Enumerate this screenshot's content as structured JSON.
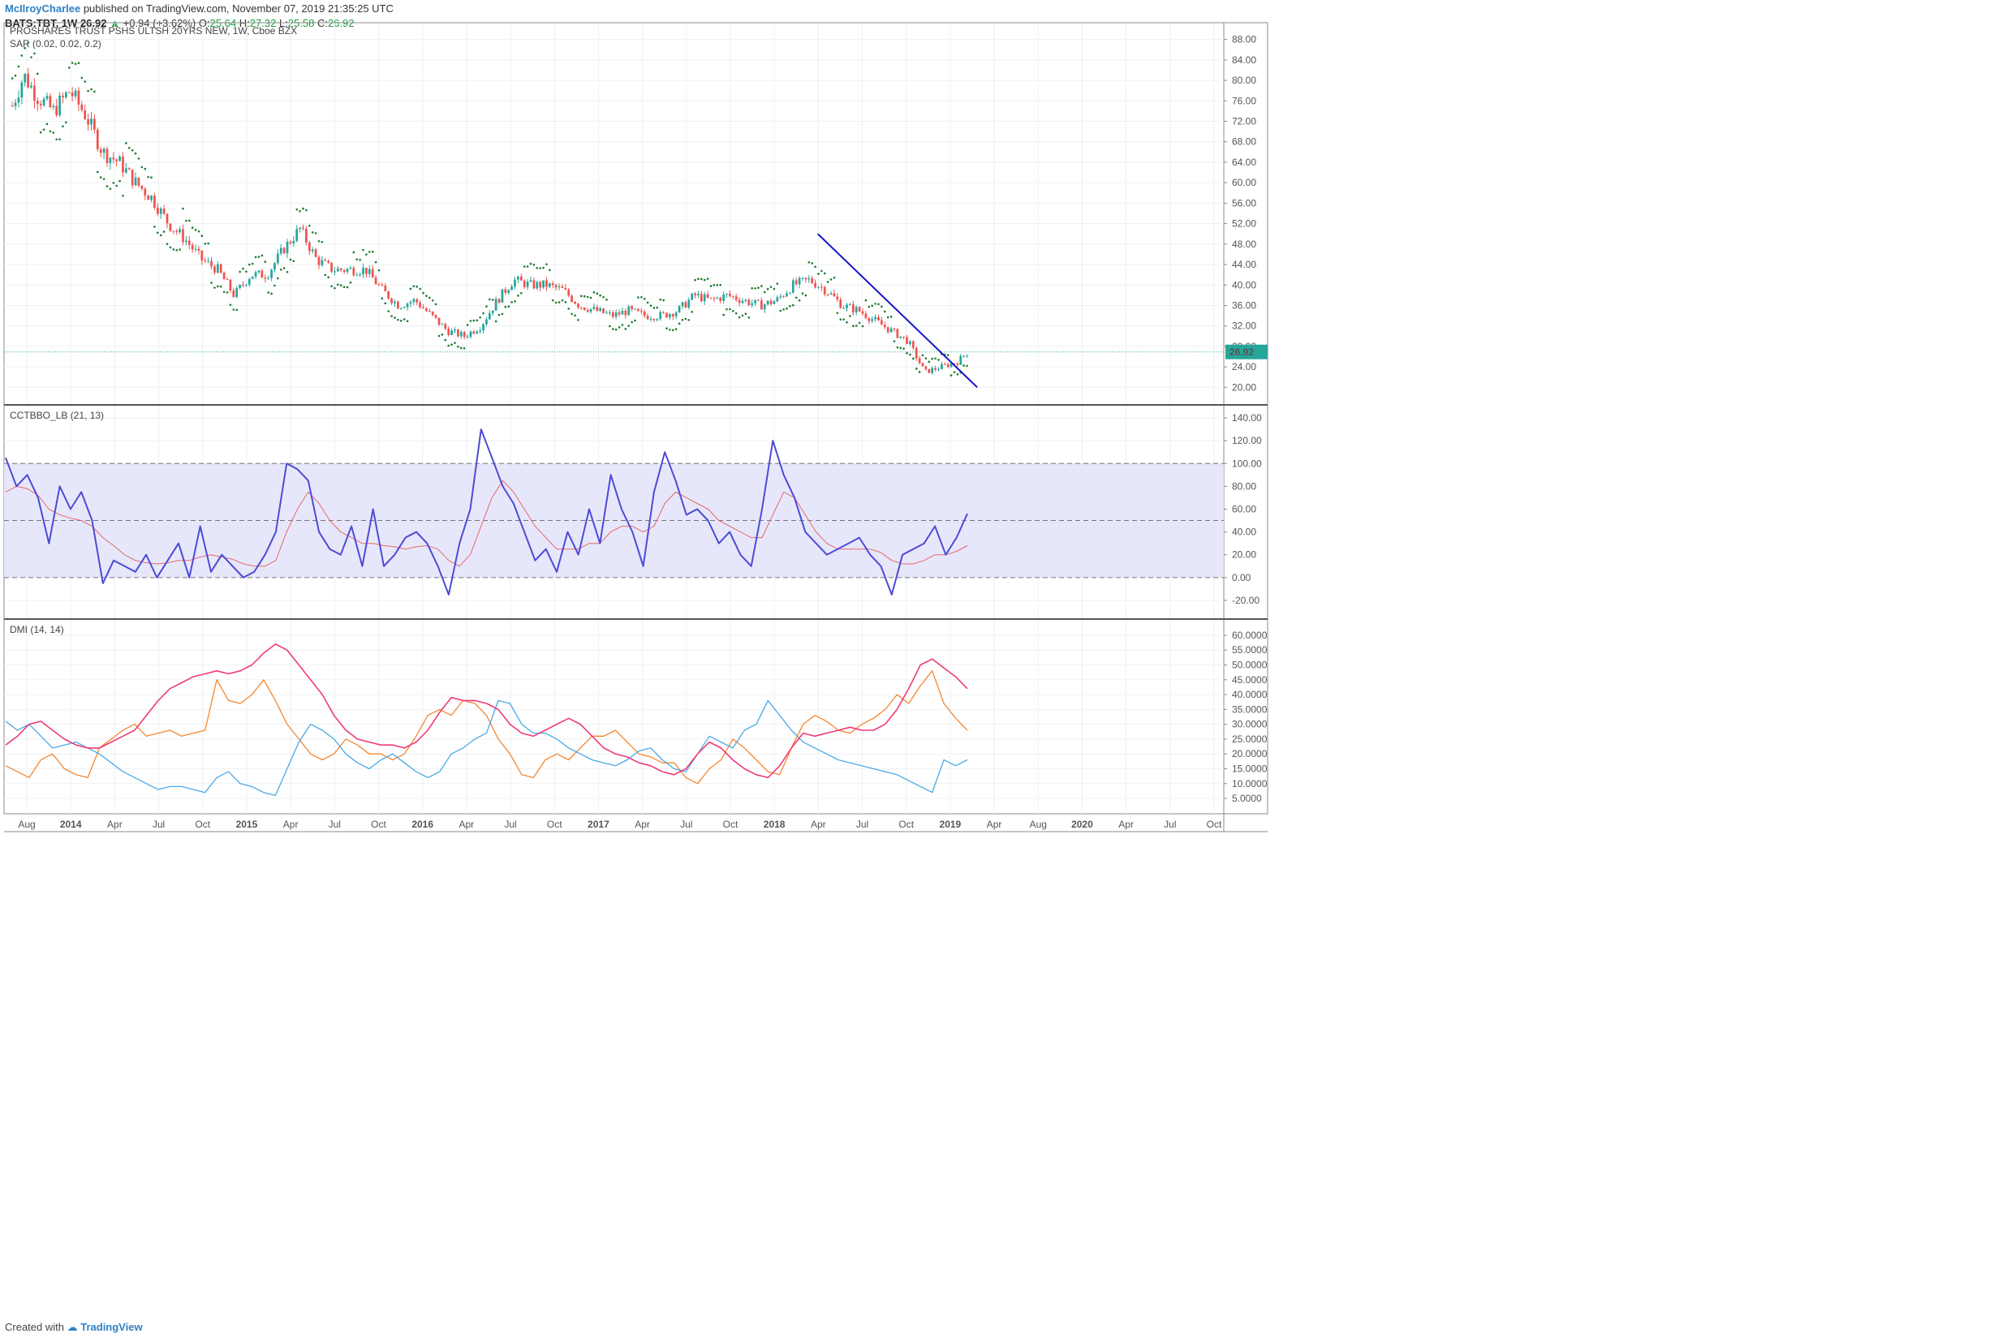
{
  "header": {
    "author": "McIlroyCharlee",
    "published": "published on TradingView.com, November 07, 2019 21:35:25 UTC",
    "symbol": "BATS:TBT, 1W",
    "last": "26.92",
    "change": "+0.94 (+3.62%)",
    "o_label": "O:",
    "o": "25.64",
    "h_label": "H:",
    "h": "27.32",
    "l_label": "L:",
    "l": "25.58",
    "c_label": "C:",
    "c": "26.92"
  },
  "footer": {
    "created_with": "Created with",
    "brand": "TradingView"
  },
  "colors": {
    "up": "#26a69a",
    "down": "#ef5350",
    "sar": "#1f7a2e",
    "trendline": "#1515c8",
    "cctbbo": "#4b4bd6",
    "cctbbo_signal": "#e36a6a",
    "band_fill": "#e4e4fb",
    "dmi_adx": "#f03a78",
    "dmi_plus": "#49a9e6",
    "dmi_minus": "#f5872f",
    "price_tag": "#26a69a",
    "grid": "#edf0f3"
  },
  "chart_data": [
    {
      "type": "candlestick",
      "title": "PROSHARES TRUST PSHS ULTSH 20YRS NEW, 1W, Cboe BZX",
      "indicator_label": "SAR (0.02, 0.02, 0.2)",
      "last_price_label": "26.92",
      "ylim": [
        18,
        90
      ],
      "y_ticks": [
        "88.00",
        "84.00",
        "80.00",
        "76.00",
        "72.00",
        "68.00",
        "64.00",
        "60.00",
        "56.00",
        "52.00",
        "48.00",
        "44.00",
        "40.00",
        "36.00",
        "32.00",
        "28.00",
        "24.00",
        "20.00"
      ],
      "x_ticks": [
        "Aug",
        "2014",
        "Apr",
        "Jul",
        "Oct",
        "2015",
        "Apr",
        "Jul",
        "Oct",
        "2016",
        "Apr",
        "Jul",
        "Oct",
        "2017",
        "Apr",
        "Jul",
        "Oct",
        "2018",
        "Apr",
        "Jul",
        "Oct",
        "2019",
        "Apr",
        "Aug",
        "2020",
        "Apr",
        "Jul",
        "Oct"
      ],
      "close_path": [
        {
          "t": 2013.55,
          "v": 75
        },
        {
          "t": 2013.62,
          "v": 81
        },
        {
          "t": 2013.7,
          "v": 77
        },
        {
          "t": 2013.8,
          "v": 74
        },
        {
          "t": 2013.9,
          "v": 78
        },
        {
          "t": 2014.0,
          "v": 73
        },
        {
          "t": 2014.1,
          "v": 66
        },
        {
          "t": 2014.2,
          "v": 64
        },
        {
          "t": 2014.3,
          "v": 60
        },
        {
          "t": 2014.4,
          "v": 57
        },
        {
          "t": 2014.5,
          "v": 52
        },
        {
          "t": 2014.6,
          "v": 49
        },
        {
          "t": 2014.7,
          "v": 45
        },
        {
          "t": 2014.8,
          "v": 43
        },
        {
          "t": 2014.9,
          "v": 38
        },
        {
          "t": 2015.0,
          "v": 42
        },
        {
          "t": 2015.1,
          "v": 42
        },
        {
          "t": 2015.2,
          "v": 47
        },
        {
          "t": 2015.3,
          "v": 51
        },
        {
          "t": 2015.4,
          "v": 45
        },
        {
          "t": 2015.5,
          "v": 43
        },
        {
          "t": 2015.6,
          "v": 43
        },
        {
          "t": 2015.7,
          "v": 43
        },
        {
          "t": 2015.8,
          "v": 39
        },
        {
          "t": 2015.9,
          "v": 36
        },
        {
          "t": 2016.0,
          "v": 37
        },
        {
          "t": 2016.1,
          "v": 34
        },
        {
          "t": 2016.2,
          "v": 31
        },
        {
          "t": 2016.3,
          "v": 30
        },
        {
          "t": 2016.4,
          "v": 32
        },
        {
          "t": 2016.5,
          "v": 37
        },
        {
          "t": 2016.6,
          "v": 41
        },
        {
          "t": 2016.7,
          "v": 40
        },
        {
          "t": 2016.8,
          "v": 40
        },
        {
          "t": 2016.9,
          "v": 39
        },
        {
          "t": 2017.0,
          "v": 36
        },
        {
          "t": 2017.1,
          "v": 35
        },
        {
          "t": 2017.2,
          "v": 34
        },
        {
          "t": 2017.3,
          "v": 35
        },
        {
          "t": 2017.4,
          "v": 34
        },
        {
          "t": 2017.5,
          "v": 34
        },
        {
          "t": 2017.6,
          "v": 35
        },
        {
          "t": 2017.7,
          "v": 38
        },
        {
          "t": 2017.8,
          "v": 37
        },
        {
          "t": 2017.9,
          "v": 38
        },
        {
          "t": 2018.0,
          "v": 37
        },
        {
          "t": 2018.1,
          "v": 36
        },
        {
          "t": 2018.2,
          "v": 37
        },
        {
          "t": 2018.3,
          "v": 40
        },
        {
          "t": 2018.4,
          "v": 41
        },
        {
          "t": 2018.5,
          "v": 39
        },
        {
          "t": 2018.6,
          "v": 36
        },
        {
          "t": 2018.7,
          "v": 35
        },
        {
          "t": 2018.8,
          "v": 33
        },
        {
          "t": 2018.9,
          "v": 31
        },
        {
          "t": 2019.0,
          "v": 29
        },
        {
          "t": 2019.1,
          "v": 23
        },
        {
          "t": 2019.2,
          "v": 24
        },
        {
          "t": 2019.3,
          "v": 25
        },
        {
          "t": 2019.36,
          "v": 26.92
        }
      ],
      "trendline": [
        {
          "t": 2018.45,
          "v": 50
        },
        {
          "t": 2019.42,
          "v": 20
        }
      ]
    },
    {
      "type": "line",
      "title": "CCTBBO_LB (21, 13)",
      "ylim": [
        -30,
        145
      ],
      "y_ticks": [
        "140.00",
        "120.00",
        "100.00",
        "80.00",
        "60.00",
        "40.00",
        "20.00",
        "0.00",
        "-20.00"
      ],
      "band": [
        0,
        100
      ],
      "midline": 50,
      "series": [
        {
          "key": "oscillator",
          "values": [
            105,
            80,
            90,
            70,
            30,
            80,
            60,
            75,
            50,
            -5,
            15,
            10,
            5,
            20,
            0,
            15,
            30,
            0,
            45,
            5,
            20,
            10,
            0,
            5,
            20,
            40,
            100,
            95,
            85,
            40,
            25,
            20,
            45,
            10,
            60,
            10,
            20,
            35,
            40,
            30,
            10,
            -15,
            30,
            60,
            130,
            105,
            80,
            65,
            40,
            15,
            25,
            5,
            40,
            20,
            60,
            30,
            90,
            60,
            40,
            10,
            75,
            110,
            85,
            55,
            60,
            50,
            30,
            40,
            20,
            10,
            60,
            120,
            90,
            70,
            40,
            30,
            20,
            25,
            30,
            35,
            20,
            10,
            -15,
            20,
            25,
            30,
            45,
            20,
            35,
            56
          ]
        },
        {
          "key": "signal",
          "values": [
            75,
            80,
            78,
            72,
            60,
            55,
            52,
            50,
            45,
            35,
            28,
            20,
            15,
            13,
            12,
            13,
            15,
            15,
            18,
            20,
            18,
            16,
            12,
            10,
            10,
            15,
            40,
            60,
            75,
            65,
            50,
            40,
            35,
            30,
            30,
            28,
            27,
            25,
            27,
            28,
            25,
            15,
            10,
            20,
            45,
            70,
            85,
            75,
            60,
            45,
            35,
            25,
            25,
            25,
            30,
            30,
            40,
            45,
            45,
            40,
            45,
            65,
            75,
            70,
            65,
            60,
            50,
            45,
            40,
            35,
            35,
            55,
            75,
            70,
            55,
            40,
            30,
            25,
            25,
            25,
            25,
            22,
            15,
            12,
            12,
            15,
            20,
            20,
            23,
            28
          ]
        }
      ]
    },
    {
      "type": "line",
      "title": "DMI (14, 14)",
      "ylim": [
        2,
        63
      ],
      "y_ticks": [
        "60.0000",
        "55.0000",
        "50.0000",
        "45.0000",
        "40.0000",
        "35.0000",
        "30.0000",
        "25.0000",
        "20.0000",
        "15.0000",
        "10.0000",
        "5.0000"
      ],
      "series": [
        {
          "key": "adx",
          "values": [
            23,
            26,
            30,
            31,
            28,
            25,
            23,
            22,
            22,
            24,
            26,
            28,
            33,
            38,
            42,
            44,
            46,
            47,
            48,
            47,
            48,
            50,
            54,
            57,
            55,
            50,
            45,
            40,
            33,
            28,
            25,
            24,
            23,
            23,
            22,
            24,
            28,
            34,
            39,
            38,
            38,
            37,
            35,
            30,
            27,
            26,
            28,
            30,
            32,
            30,
            26,
            22,
            20,
            19,
            17,
            16,
            14,
            13,
            15,
            20,
            24,
            22,
            18,
            15,
            13,
            12,
            16,
            22,
            27,
            26,
            27,
            28,
            29,
            28,
            28,
            30,
            35,
            42,
            50,
            52,
            49,
            46,
            42
          ]
        },
        {
          "key": "di_plus",
          "values": [
            31,
            28,
            30,
            26,
            22,
            23,
            24,
            22,
            20,
            17,
            14,
            12,
            10,
            8,
            9,
            9,
            8,
            7,
            12,
            14,
            10,
            9,
            7,
            6,
            15,
            24,
            30,
            28,
            25,
            20,
            17,
            15,
            18,
            20,
            17,
            14,
            12,
            14,
            20,
            22,
            25,
            27,
            38,
            37,
            30,
            27,
            27,
            25,
            22,
            20,
            18,
            17,
            16,
            18,
            21,
            22,
            18,
            15,
            14,
            20,
            26,
            24,
            22,
            28,
            30,
            38,
            33,
            28,
            24,
            22,
            20,
            18,
            17,
            16,
            15,
            14,
            13,
            11,
            9,
            7,
            18,
            16,
            18
          ]
        },
        {
          "key": "di_minus",
          "values": [
            16,
            14,
            12,
            18,
            20,
            15,
            13,
            12,
            22,
            25,
            28,
            30,
            26,
            27,
            28,
            26,
            27,
            28,
            45,
            38,
            37,
            40,
            45,
            38,
            30,
            25,
            20,
            18,
            20,
            25,
            23,
            20,
            20,
            18,
            20,
            26,
            33,
            35,
            33,
            38,
            37,
            33,
            25,
            20,
            13,
            12,
            18,
            20,
            18,
            22,
            26,
            26,
            28,
            24,
            20,
            19,
            17,
            17,
            12,
            10,
            15,
            18,
            25,
            22,
            18,
            14,
            13,
            22,
            30,
            33,
            31,
            28,
            27,
            30,
            32,
            35,
            40,
            37,
            43,
            48,
            37,
            32,
            28
          ]
        }
      ]
    }
  ]
}
